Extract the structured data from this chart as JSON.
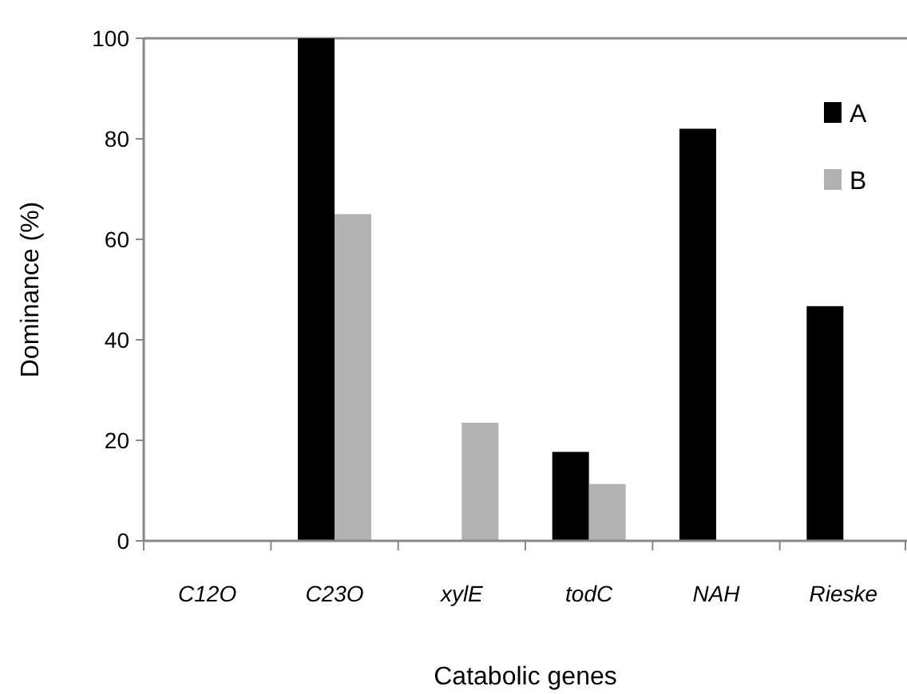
{
  "chart_data": {
    "type": "bar",
    "xlabel": "Catabolic genes",
    "ylabel": "Dominance (%)",
    "categories": [
      "C12O",
      "C23O",
      "xylE",
      "todC",
      "NAH",
      "Rieske"
    ],
    "series": [
      {
        "name": "A",
        "color": "#000000",
        "values": [
          0,
          100,
          0,
          17.7,
          82,
          46.7
        ]
      },
      {
        "name": "B",
        "color": "#b2b2b2",
        "values": [
          0,
          65,
          23.5,
          11.3,
          0,
          0
        ]
      }
    ],
    "ylim": [
      0,
      100
    ],
    "yticks": [
      0,
      20,
      40,
      60,
      80,
      100
    ],
    "legend": "top right",
    "grid": false
  }
}
